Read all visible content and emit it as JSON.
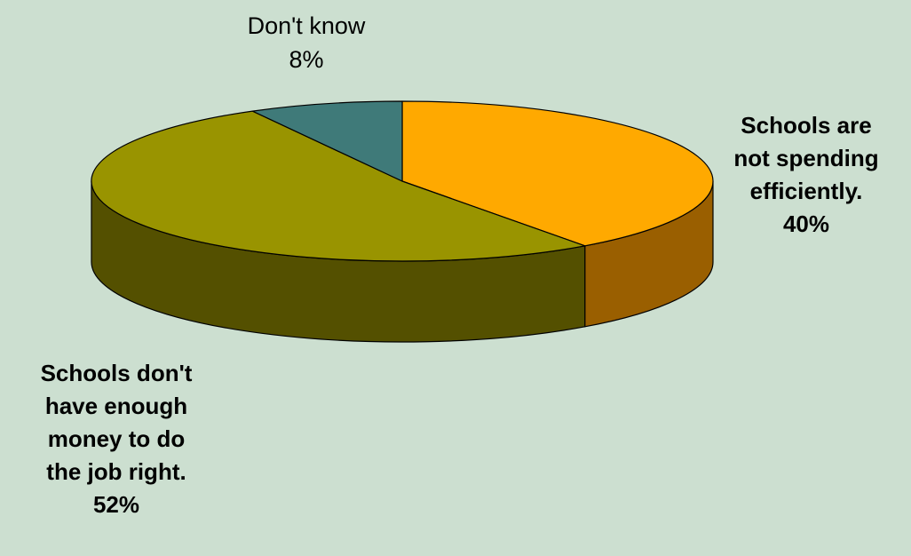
{
  "chart_data": {
    "type": "pie",
    "style": "3d",
    "slices": [
      {
        "category_lines": [
          "Schools are",
          "not spending",
          "efficiently."
        ],
        "value": 40,
        "value_label": "40%",
        "color": "#ffa900",
        "side_color": "#9a5f00",
        "label_bold": true
      },
      {
        "category_lines": [
          "Schools don't",
          "have enough",
          "money to do",
          "the job right."
        ],
        "value": 52,
        "value_label": "52%",
        "color": "#999400",
        "side_color": "#545000",
        "label_bold": true
      },
      {
        "category_lines": [
          "Don't know"
        ],
        "value": 8,
        "value_label": "8%",
        "color": "#3f7a79",
        "side_color": "#2a5453",
        "label_bold": false
      }
    ]
  }
}
